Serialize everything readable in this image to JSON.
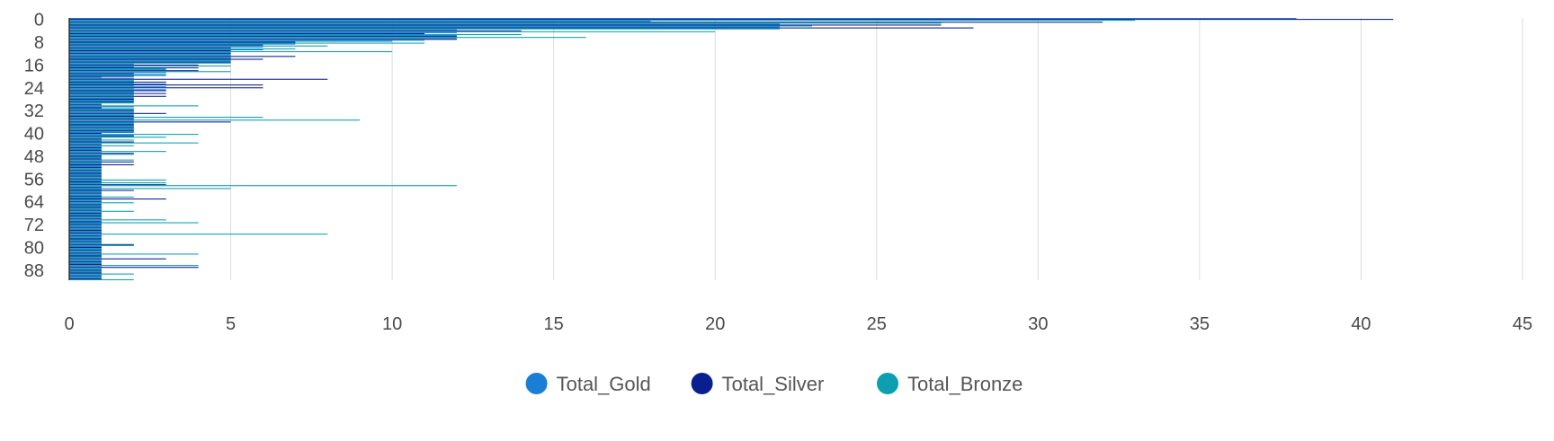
{
  "chart_data": {
    "type": "bar",
    "orientation": "horizontal",
    "title": "",
    "xlabel": "",
    "ylabel": "",
    "xlim": [
      0,
      45
    ],
    "x_ticks": [
      0,
      5,
      10,
      15,
      20,
      25,
      30,
      35,
      40,
      45
    ],
    "categories": [
      0,
      1,
      2,
      3,
      4,
      5,
      6,
      7,
      8,
      9,
      10,
      11,
      12,
      13,
      14,
      15,
      16,
      17,
      18,
      19,
      20,
      21,
      22,
      23,
      24,
      25,
      26,
      27,
      28,
      29,
      30,
      31,
      32,
      33,
      34,
      35,
      36,
      37,
      38,
      39,
      40,
      41,
      42,
      43,
      44,
      45,
      46,
      47,
      48,
      49,
      50,
      51,
      52,
      53,
      54,
      55,
      56,
      57,
      58,
      59,
      60,
      61,
      62,
      63,
      64,
      65,
      66,
      67,
      68,
      69,
      70,
      71,
      72,
      73,
      74,
      75,
      76,
      77,
      78,
      79,
      80,
      81,
      82,
      83,
      84,
      85,
      86,
      87,
      88,
      89,
      90,
      91
    ],
    "y_ticks": [
      0,
      8,
      16,
      24,
      32,
      40,
      48,
      56,
      64,
      72,
      80,
      88
    ],
    "grid": true,
    "legend_position": "bottom",
    "series": [
      {
        "name": "Total_Gold",
        "color": "#1a7fd4",
        "values": [
          38,
          18,
          22,
          22,
          12,
          12,
          12,
          12,
          10,
          7,
          6,
          6,
          5,
          5,
          5,
          5,
          2,
          2,
          3,
          3,
          3,
          2,
          2,
          3,
          3,
          3,
          2,
          2,
          2,
          2,
          1,
          2,
          2,
          2,
          2,
          2,
          2,
          2,
          2,
          2,
          2,
          2,
          1,
          1,
          1,
          1,
          1,
          1,
          1,
          1,
          1,
          1,
          1,
          1,
          1,
          1,
          1,
          1,
          1,
          1,
          1,
          1,
          1,
          1,
          1,
          1,
          1,
          1,
          1,
          1,
          1,
          1,
          1,
          1,
          1,
          1,
          1,
          1,
          1,
          1,
          1,
          1,
          1,
          1,
          1,
          1,
          1,
          1,
          1,
          1,
          1,
          1
        ]
      },
      {
        "name": "Total_Silver",
        "color": "#0a1f8f",
        "values": [
          41,
          32,
          27,
          28,
          14,
          11,
          12,
          12,
          7,
          6,
          5,
          5,
          5,
          7,
          6,
          5,
          4,
          4,
          4,
          2,
          2,
          8,
          3,
          6,
          6,
          3,
          3,
          3,
          2,
          2,
          1,
          1,
          2,
          3,
          2,
          2,
          5,
          2,
          2,
          2,
          1,
          2,
          1,
          2,
          1,
          1,
          1,
          2,
          1,
          1,
          2,
          2,
          1,
          1,
          1,
          1,
          1,
          1,
          3,
          1,
          2,
          1,
          1,
          3,
          1,
          1,
          1,
          1,
          1,
          1,
          1,
          1,
          1,
          1,
          1,
          1,
          1,
          1,
          1,
          2,
          1,
          1,
          1,
          1,
          3,
          1,
          1,
          4,
          1,
          1,
          1,
          1
        ]
      },
      {
        "name": "Total_Bronze",
        "color": "#0c9fb0",
        "values": [
          33,
          27,
          23,
          22,
          20,
          14,
          16,
          11,
          11,
          8,
          7,
          10,
          5,
          5,
          5,
          5,
          5,
          3,
          5,
          3,
          1,
          2,
          2,
          2,
          2,
          2,
          2,
          2,
          2,
          2,
          4,
          2,
          2,
          2,
          6,
          9,
          2,
          2,
          2,
          2,
          4,
          3,
          2,
          4,
          2,
          1,
          3,
          2,
          1,
          2,
          1,
          1,
          1,
          1,
          1,
          1,
          3,
          3,
          12,
          5,
          1,
          1,
          2,
          1,
          2,
          1,
          1,
          2,
          1,
          1,
          3,
          4,
          1,
          1,
          1,
          8,
          1,
          1,
          1,
          2,
          1,
          1,
          4,
          1,
          1,
          1,
          4,
          1,
          1,
          2,
          1,
          2
        ]
      }
    ]
  }
}
